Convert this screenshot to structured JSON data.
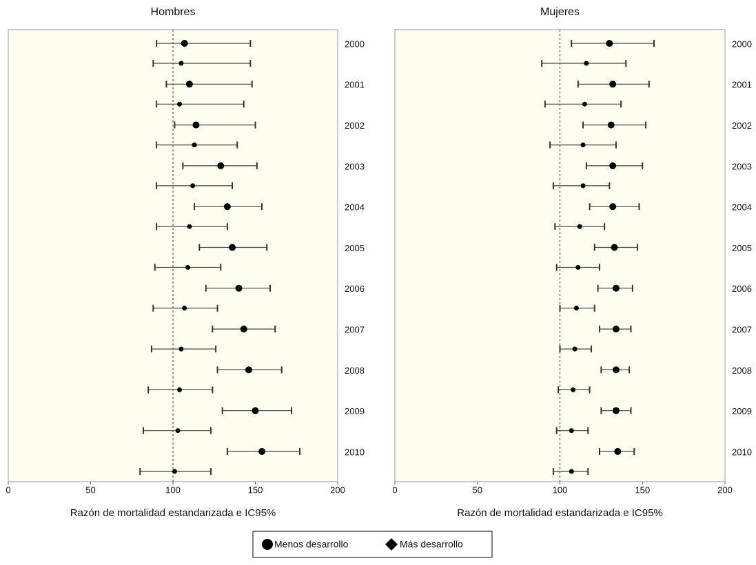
{
  "chart_data": [
    {
      "type": "forest",
      "title": "Hombres",
      "xlabel": "Razón de mortalidad estandarizada e IC95%",
      "categories": [
        "2000",
        "2001",
        "2002",
        "2003",
        "2004",
        "2005",
        "2006",
        "2007",
        "2008",
        "2009",
        "2010"
      ],
      "xlim": [
        0,
        200
      ],
      "xticks": [
        0,
        50,
        100,
        150,
        200
      ],
      "refline": 100,
      "series": [
        {
          "name": "Menos desarrollo",
          "color": "#000000",
          "values": [
            107,
            110,
            114,
            129,
            133,
            136,
            140,
            143,
            146,
            150,
            154
          ],
          "lower": [
            90,
            96,
            101,
            106,
            113,
            116,
            120,
            124,
            127,
            130,
            133
          ],
          "upper": [
            147,
            148,
            150,
            151,
            154,
            157,
            159,
            162,
            166,
            172,
            177
          ]
        },
        {
          "name": "Más desarrollo",
          "color": "#000000",
          "values": [
            105,
            104,
            113,
            112,
            110,
            109,
            107,
            105,
            104,
            103,
            101
          ],
          "lower": [
            88,
            90,
            90,
            90,
            90,
            89,
            88,
            87,
            85,
            82,
            80
          ],
          "upper": [
            147,
            143,
            139,
            136,
            133,
            129,
            127,
            126,
            124,
            123,
            123
          ]
        }
      ]
    },
    {
      "type": "forest",
      "title": "Mujeres",
      "xlabel": "Razón de mortalidad estandarizada e IC95%",
      "categories": [
        "2000",
        "2001",
        "2002",
        "2003",
        "2004",
        "2005",
        "2006",
        "2007",
        "2008",
        "2009",
        "2010"
      ],
      "xlim": [
        0,
        200
      ],
      "xticks": [
        0,
        50,
        100,
        150,
        200
      ],
      "refline": 100,
      "series": [
        {
          "color": "#000000",
          "values": [
            130,
            132,
            131,
            132,
            132,
            133,
            134,
            134,
            134,
            134,
            135
          ],
          "lower": [
            107,
            111,
            114,
            116,
            118,
            121,
            123,
            124,
            125,
            125,
            124
          ],
          "upper": [
            157,
            154,
            152,
            150,
            148,
            147,
            144,
            143,
            142,
            143,
            145
          ]
        },
        {
          "color": "#000000",
          "values": [
            116,
            115,
            114,
            114,
            112,
            111,
            110,
            109,
            108,
            107,
            107
          ],
          "lower": [
            89,
            91,
            94,
            96,
            97,
            98,
            100,
            100,
            99,
            98,
            96
          ],
          "upper": [
            140,
            137,
            134,
            130,
            127,
            124,
            121,
            119,
            118,
            117,
            117
          ]
        }
      ]
    }
  ]
}
